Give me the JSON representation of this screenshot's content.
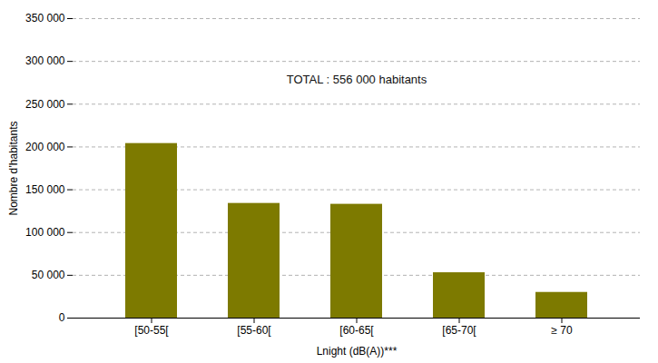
{
  "chart_data": {
    "type": "bar",
    "categories": [
      "[50-55[",
      "[55-60[",
      "[60-65[",
      "[65-70[",
      "≥ 70"
    ],
    "values": [
      204000,
      134000,
      133000,
      53000,
      30000
    ],
    "color": "#7d7a00",
    "xlabel": "Lnight (dB(A))***",
    "ylabel": "Nombre d’habitants",
    "ylim": [
      0,
      350000
    ],
    "yticks": [
      0,
      {
        "value": 50000,
        "label": "50 000"
      },
      {
        "value": 100000,
        "label": "100 000"
      },
      {
        "value": 150000,
        "label": "150 000"
      },
      {
        "value": 200000,
        "label": "200 000"
      },
      {
        "value": 250000,
        "label": "250 000"
      },
      {
        "value": 300000,
        "label": "300 000"
      },
      {
        "value": 350000,
        "label": "350 000"
      }
    ],
    "grid": true,
    "annotation": "TOTAL : 556 000 habitants"
  }
}
